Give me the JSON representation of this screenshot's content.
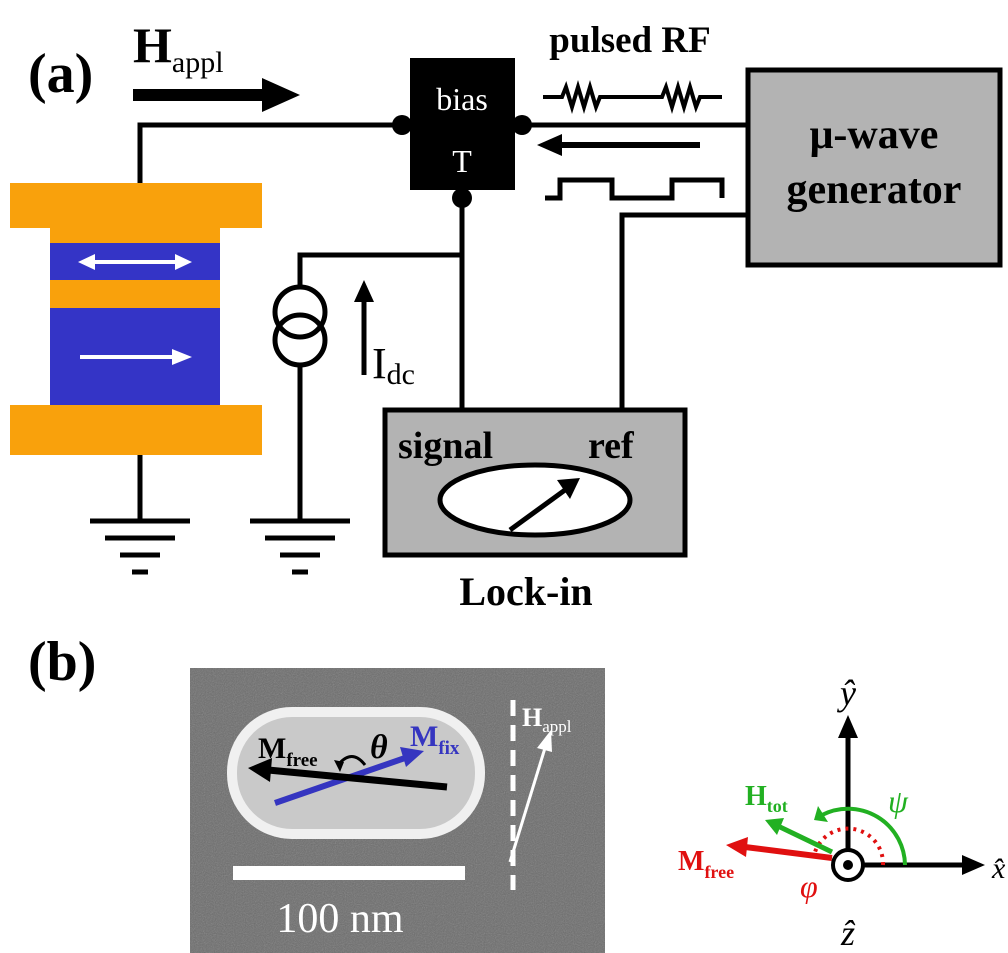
{
  "panel_a": {
    "label": "(a)",
    "h_appl": {
      "main": "H",
      "sub": "appl"
    },
    "pulsed_rf": "pulsed RF",
    "bias_tee": {
      "line1": "bias",
      "line2": "T"
    },
    "generator": {
      "line1": "μ-wave",
      "line2": "generator"
    },
    "current": {
      "main": "I",
      "sub": "dc"
    },
    "lockin": {
      "signal": "signal",
      "ref": "ref",
      "label": "Lock-in"
    }
  },
  "panel_b": {
    "label": "(b)",
    "m_free": {
      "main": "M",
      "sub": "free"
    },
    "theta": "θ",
    "m_fix": {
      "main": "M",
      "sub": "fix"
    },
    "h_appl": {
      "main": "H",
      "sub": "appl"
    },
    "scale": "100 nm",
    "y_axis": "ŷ",
    "x_axis": "x̂",
    "z_axis": "ẑ",
    "h_tot": {
      "main": "H",
      "sub": "tot"
    },
    "psi": "ψ",
    "m_free_vec": {
      "main": "M",
      "sub": "free"
    },
    "phi": "φ"
  }
}
